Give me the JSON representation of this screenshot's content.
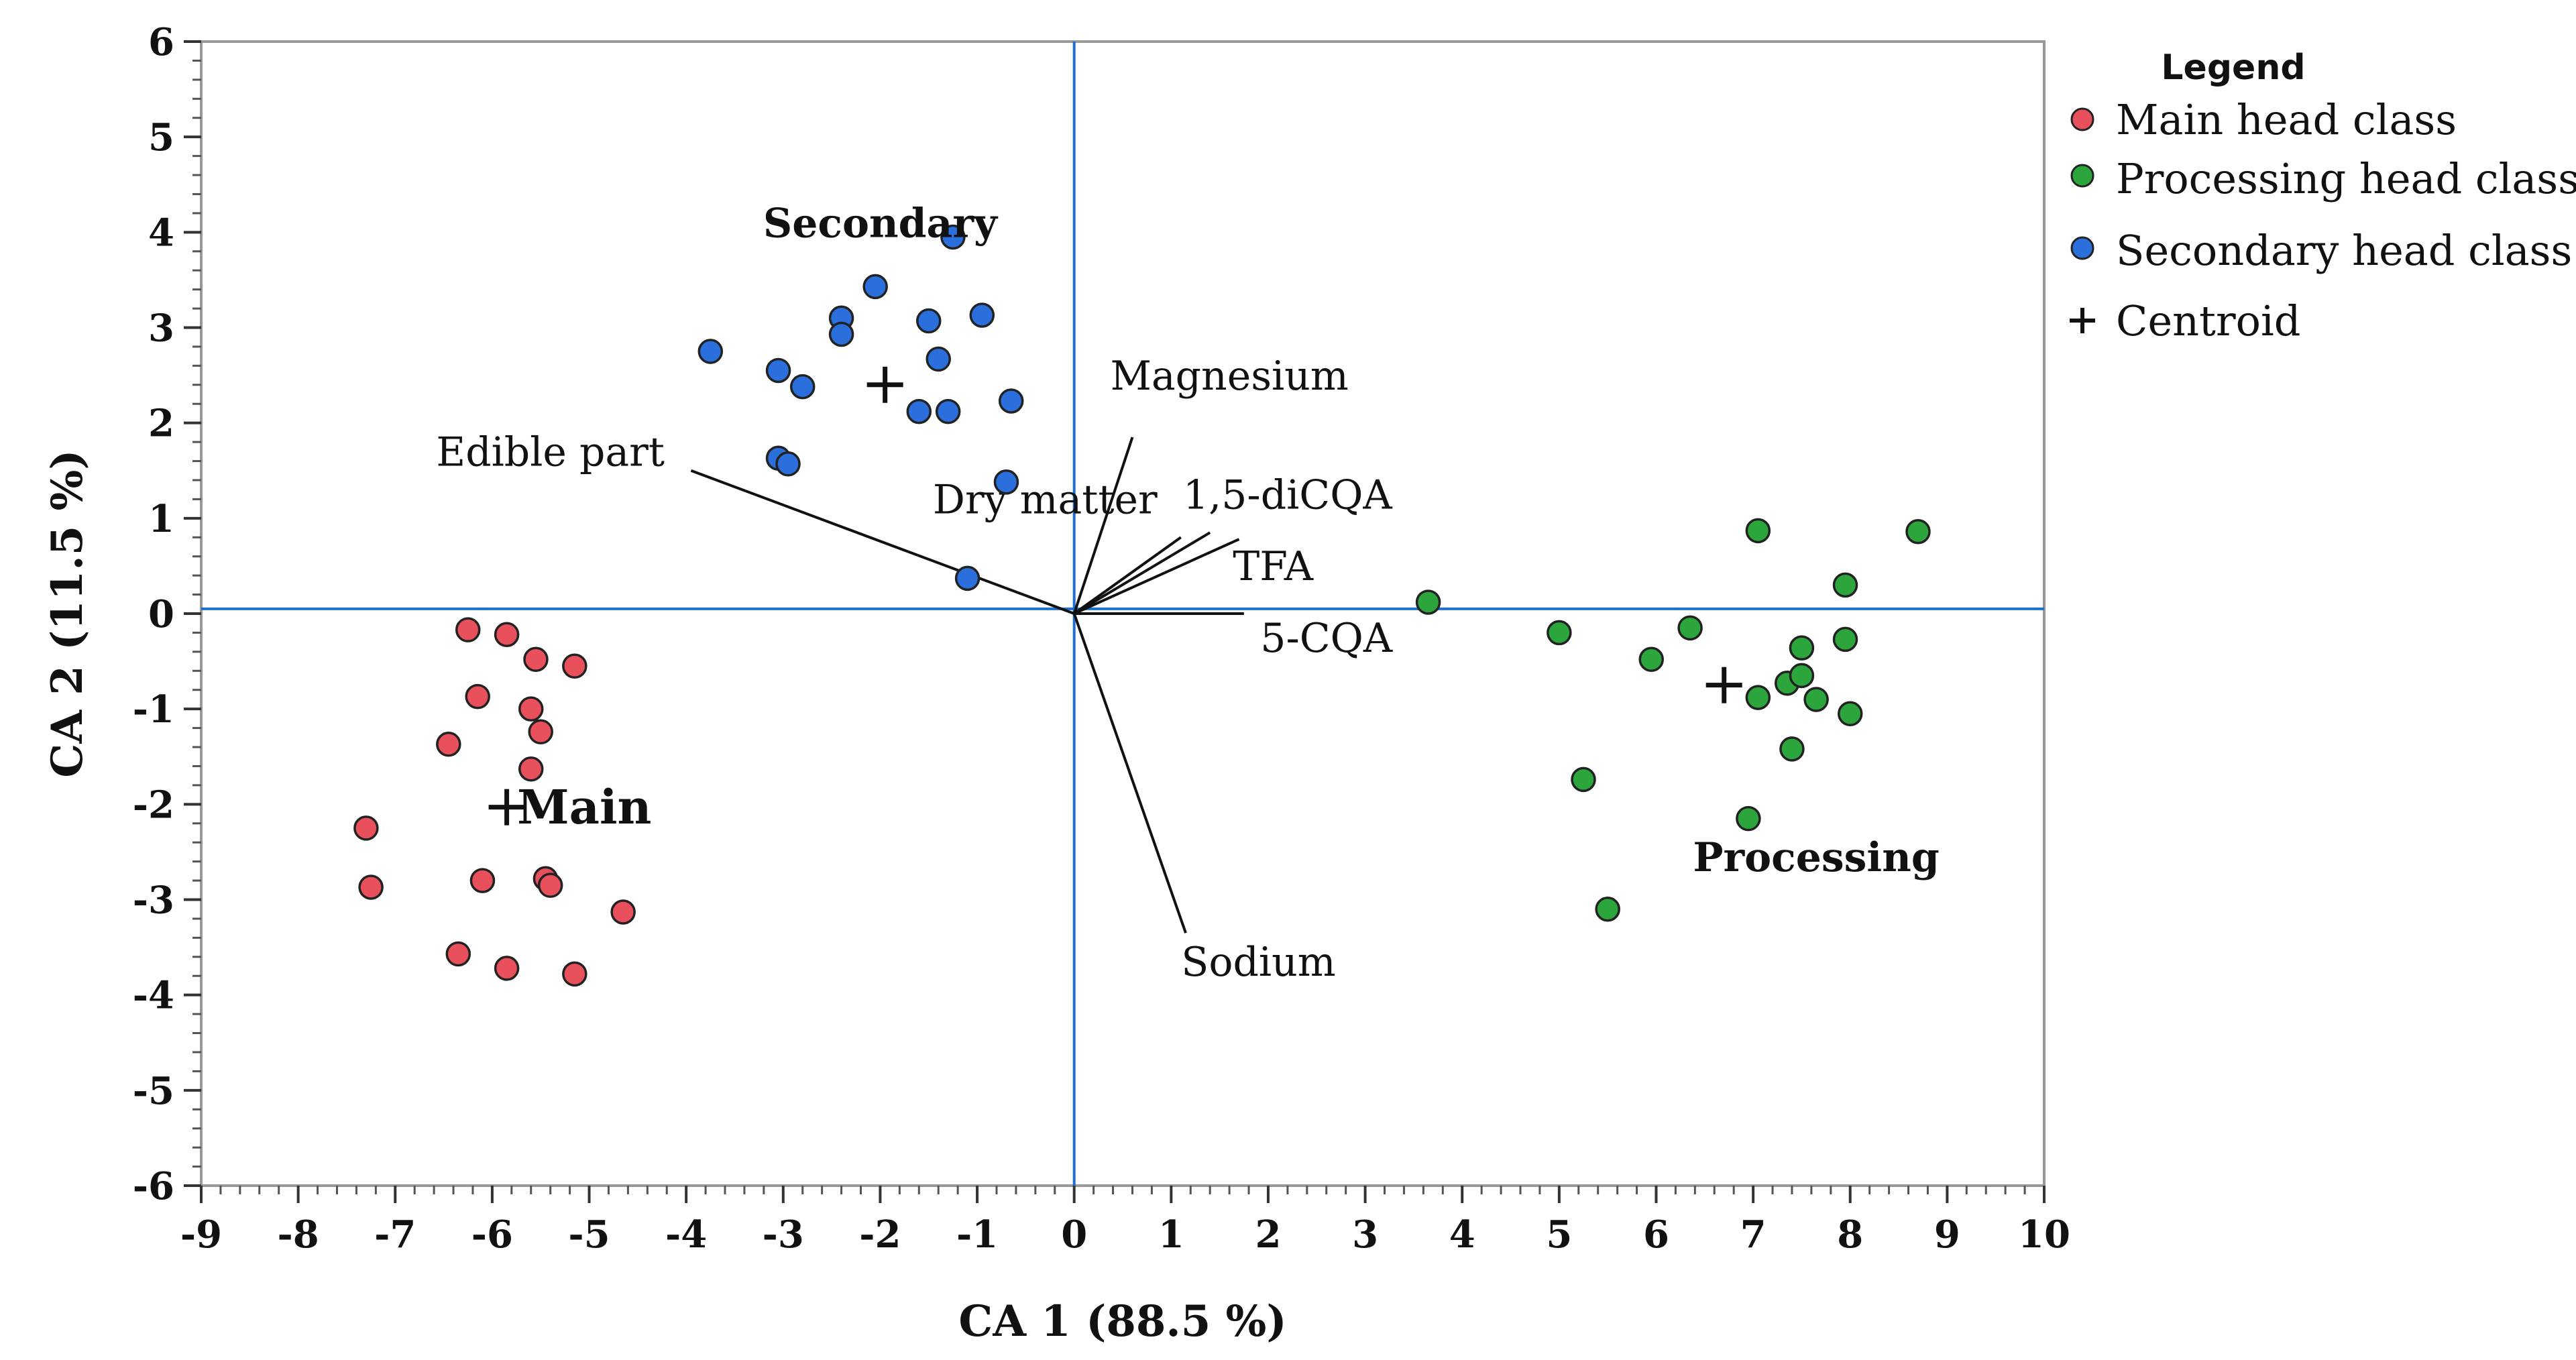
{
  "chart_data": {
    "type": "scatter",
    "xlabel": "CA 1  (88.5 %)",
    "ylabel": "CA 2  (11.5 %)",
    "xlim": [
      -9,
      10
    ],
    "ylim": [
      -6,
      6
    ],
    "xticks": [
      -9,
      -8,
      -7,
      -6,
      -5,
      -4,
      -3,
      -2,
      -1,
      0,
      1,
      2,
      3,
      4,
      5,
      6,
      7,
      8,
      9,
      10
    ],
    "yticks": [
      -6,
      -5,
      -4,
      -3,
      -2,
      -1,
      0,
      1,
      2,
      3,
      4,
      5,
      6
    ],
    "grid": false,
    "legend": {
      "title": "Legend",
      "placement": "right",
      "entries": [
        "Main head class",
        "Processing head class",
        "Secondary head class",
        "Centroid"
      ]
    },
    "series": [
      {
        "name": "Main head class",
        "color": "#e8505b",
        "points": [
          [
            -6.25,
            -0.17
          ],
          [
            -5.85,
            -0.22
          ],
          [
            -5.55,
            -0.48
          ],
          [
            -5.15,
            -0.55
          ],
          [
            -6.15,
            -0.87
          ],
          [
            -5.6,
            -1.0
          ],
          [
            -5.5,
            -1.24
          ],
          [
            -6.45,
            -1.37
          ],
          [
            -5.6,
            -1.63
          ],
          [
            -7.3,
            -2.25
          ],
          [
            -7.25,
            -2.87
          ],
          [
            -6.1,
            -2.8
          ],
          [
            -5.45,
            -2.78
          ],
          [
            -5.4,
            -2.85
          ],
          [
            -4.65,
            -3.13
          ],
          [
            -6.35,
            -3.57
          ],
          [
            -5.85,
            -3.72
          ],
          [
            -5.15,
            -3.78
          ]
        ]
      },
      {
        "name": "Processing head class",
        "color": "#2ca63c",
        "points": [
          [
            3.65,
            0.12
          ],
          [
            5.0,
            -0.2
          ],
          [
            5.95,
            -0.48
          ],
          [
            6.35,
            -0.15
          ],
          [
            5.25,
            -1.74
          ],
          [
            5.5,
            -3.1
          ],
          [
            6.95,
            -2.15
          ],
          [
            7.05,
            0.87
          ],
          [
            7.05,
            -0.88
          ],
          [
            7.35,
            -0.73
          ],
          [
            7.5,
            -0.65
          ],
          [
            7.5,
            -0.36
          ],
          [
            7.65,
            -0.9
          ],
          [
            7.4,
            -1.42
          ],
          [
            7.95,
            0.3
          ],
          [
            7.95,
            -0.27
          ],
          [
            8.0,
            -1.05
          ],
          [
            8.7,
            0.86
          ]
        ]
      },
      {
        "name": "Secondary head class",
        "color": "#2a6fdb",
        "points": [
          [
            -1.25,
            3.95
          ],
          [
            -2.05,
            3.43
          ],
          [
            -2.4,
            3.1
          ],
          [
            -2.4,
            2.93
          ],
          [
            -1.5,
            3.07
          ],
          [
            -0.95,
            3.13
          ],
          [
            -3.75,
            2.75
          ],
          [
            -3.05,
            2.55
          ],
          [
            -2.8,
            2.38
          ],
          [
            -1.4,
            2.67
          ],
          [
            -1.3,
            2.12
          ],
          [
            -1.6,
            2.12
          ],
          [
            -0.65,
            2.23
          ],
          [
            -3.05,
            1.63
          ],
          [
            -2.95,
            1.57
          ],
          [
            -0.7,
            1.38
          ],
          [
            -1.1,
            0.37
          ]
        ]
      }
    ],
    "centroids": [
      {
        "name": "Main",
        "x": -5.85,
        "y": -2.03
      },
      {
        "name": "Secondary",
        "x": -1.95,
        "y": 2.4
      },
      {
        "name": "Processing",
        "x": 6.7,
        "y": -0.75
      }
    ],
    "class_labels": [
      {
        "text": "Main",
        "x": -5.05,
        "y": -2.2,
        "size": "large"
      },
      {
        "text": "Secondary",
        "x": -2.0,
        "y": 3.95,
        "size": "medium"
      },
      {
        "text": "Processing",
        "x": 7.65,
        "y": -2.7,
        "size": "medium"
      }
    ],
    "vectors": [
      {
        "label": "Edible part",
        "x": -3.95,
        "y": 1.5,
        "label_x": -5.4,
        "label_y": 1.55
      },
      {
        "label": "Magnesium",
        "x": 0.6,
        "y": 1.85,
        "label_x": 1.6,
        "label_y": 2.35
      },
      {
        "label": "Dry matter",
        "x": 1.1,
        "y": 0.8,
        "label_x": -0.3,
        "label_y": 1.05
      },
      {
        "label": "1,5-diCQA",
        "x": 1.4,
        "y": 0.85,
        "label_x": 2.2,
        "label_y": 1.1
      },
      {
        "label": "TFA",
        "x": 1.7,
        "y": 0.78,
        "label_x": 2.05,
        "label_y": 0.35
      },
      {
        "label": "5-CQA",
        "x": 1.75,
        "y": 0.0,
        "label_x": 2.6,
        "label_y": -0.4
      },
      {
        "label": "Sodium",
        "x": 1.15,
        "y": -3.35,
        "label_x": 1.9,
        "label_y": -3.8
      }
    ]
  },
  "colors": {
    "axis_line": "#1f6fd1",
    "frame": "#999999",
    "vector": "#111111"
  }
}
